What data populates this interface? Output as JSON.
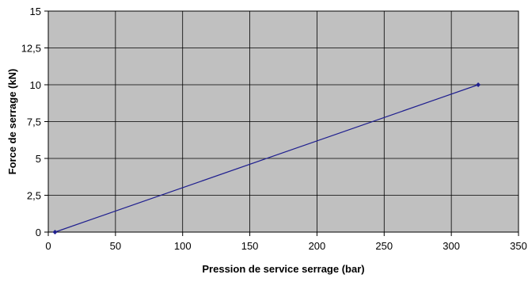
{
  "chart_data": {
    "type": "line",
    "title": "",
    "xlabel": "Pression de service serrage (bar)",
    "ylabel": "Force de serrage  (kN)",
    "xlim": [
      0,
      350
    ],
    "ylim": [
      0,
      15
    ],
    "x_ticks": [
      0,
      50,
      100,
      150,
      200,
      250,
      300,
      350
    ],
    "x_tick_labels": [
      "0",
      "50",
      "100",
      "150",
      "200",
      "250",
      "300",
      "350"
    ],
    "y_ticks": [
      0,
      2.5,
      5,
      7.5,
      10,
      12.5,
      15
    ],
    "y_tick_labels": [
      "0",
      "2,5",
      "5",
      "7,5",
      "10",
      "12,5",
      "15"
    ],
    "grid": true,
    "legend": "none",
    "series": [
      {
        "x": [
          5,
          320
        ],
        "y": [
          0,
          10
        ],
        "color": "#1f1f8f",
        "marker": "diamond"
      }
    ],
    "colors": {
      "plot_background": "#c0c0c0",
      "grid": "#000000"
    }
  }
}
